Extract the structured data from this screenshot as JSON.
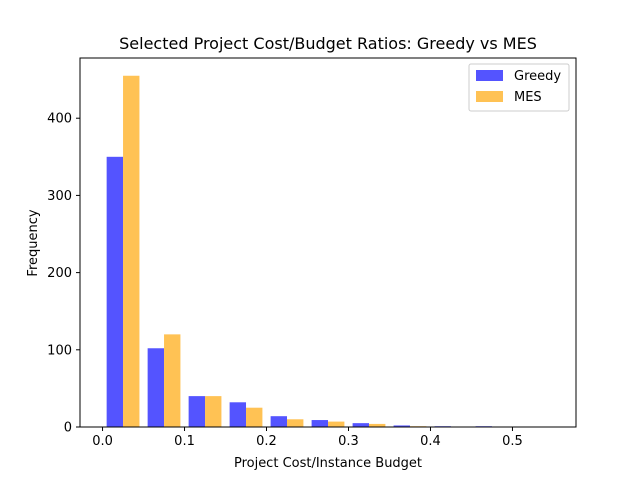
{
  "chart_data": {
    "type": "bar",
    "title": "Selected Project Cost/Budget Ratios: Greedy vs MES",
    "xlabel": "Project Cost/Instance Budget",
    "ylabel": "Frequency",
    "bin_edges": [
      0.0,
      0.05,
      0.1,
      0.15,
      0.2,
      0.25,
      0.3,
      0.35,
      0.4,
      0.45,
      0.5,
      0.55
    ],
    "series": [
      {
        "name": "Greedy",
        "color": "#4b4bff",
        "values": [
          350,
          102,
          40,
          32,
          14,
          9,
          5,
          2,
          1,
          1,
          0
        ]
      },
      {
        "name": "MES",
        "color": "#ffbf4b",
        "values": [
          455,
          120,
          40,
          25,
          10,
          7,
          4,
          1,
          0,
          0,
          0
        ]
      }
    ],
    "xlim": [
      -0.0275,
      0.5775
    ],
    "ylim": [
      0,
      478
    ],
    "xticks": [
      0.0,
      0.1,
      0.2,
      0.3,
      0.4,
      0.5
    ],
    "xtick_labels": [
      "0.0",
      "0.1",
      "0.2",
      "0.3",
      "0.4",
      "0.5"
    ],
    "yticks": [
      0,
      100,
      200,
      300,
      400
    ],
    "ytick_labels": [
      "0",
      "100",
      "200",
      "300",
      "400"
    ],
    "legend_position": "upper right",
    "grid": false
  }
}
